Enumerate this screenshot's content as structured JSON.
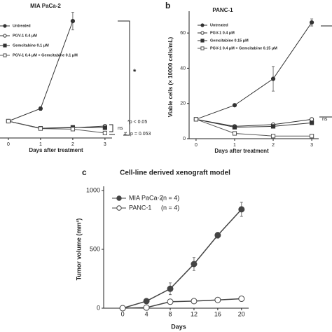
{
  "chart_data": [
    {
      "type": "line",
      "title": "MIA PaCa-2",
      "x_label": "Days after treatment",
      "x": [
        0,
        1,
        2,
        3
      ],
      "xlim": [
        -0.26,
        3.22
      ],
      "xticks": [
        0,
        1,
        2,
        3
      ],
      "ylim": [
        0,
        70
      ],
      "series": [
        {
          "name": "Untreated",
          "color": "#333333",
          "marker": "circle",
          "filled": true,
          "values": [
            9.5,
            16.6,
            66,
            null
          ],
          "errors": [
            0.3,
            1,
            5,
            null
          ]
        },
        {
          "name": "PGV-1 0.4 μM",
          "color": "#333333",
          "marker": "circle",
          "filled": false,
          "values": [
            9.5,
            5.5,
            5.8,
            6.7
          ],
          "errors": [
            0.3,
            0.5,
            0.5,
            0.5
          ]
        },
        {
          "name": "Gemcitabine 0.1 μM",
          "color": "#333333",
          "marker": "square",
          "filled": true,
          "values": [
            9.5,
            5.5,
            6,
            5.8
          ],
          "errors": [
            0.3,
            0.5,
            0.5,
            0.5
          ]
        },
        {
          "name": "PGV-1 0.4 μM + Gemcitabine 0.1 μM",
          "color": "#555555",
          "marker": "square",
          "filled": false,
          "values": [
            9.5,
            5.3,
            5,
            2.8
          ],
          "errors": [
            0.3,
            0.5,
            0.5,
            0.4
          ]
        }
      ],
      "annotations": [
        "*",
        "ns",
        "*p < 0.05",
        "#",
        "p = 0.053"
      ]
    },
    {
      "type": "line",
      "panel": "b",
      "title": "PANC-1",
      "x_label": "Days after treatment",
      "y_label": "Viable cells (× 10000 cells/mL)",
      "x": [
        0,
        1,
        2,
        3
      ],
      "xlim": [
        -0.18,
        3.18
      ],
      "xticks": [
        0,
        1,
        2,
        3
      ],
      "ylim": [
        0,
        70
      ],
      "yticks": [
        0,
        20,
        40,
        60
      ],
      "series": [
        {
          "name": "Untreated",
          "color": "#333333",
          "marker": "circle",
          "filled": true,
          "values": [
            11,
            19,
            34,
            66
          ],
          "errors": [
            0.5,
            0.8,
            7,
            2
          ]
        },
        {
          "name": "PGV-1 0.4 μM",
          "color": "#333333",
          "marker": "circle",
          "filled": false,
          "values": [
            11,
            7,
            8,
            11
          ],
          "errors": [
            0.5,
            0.5,
            0.6,
            0.6
          ]
        },
        {
          "name": "Gemcitabine 0.15 μM",
          "color": "#333333",
          "marker": "square",
          "filled": true,
          "values": [
            11,
            6.5,
            7,
            9
          ],
          "errors": [
            0.5,
            0.5,
            0.5,
            0.5
          ]
        },
        {
          "name": "PGV-1 0.4 μM + Gemcitabine 0.15 μM",
          "color": "#555555",
          "marker": "square",
          "filled": false,
          "values": [
            11,
            3,
            1.5,
            1.5
          ],
          "errors": [
            0.5,
            0.4,
            0.3,
            0.3
          ]
        }
      ],
      "annotations": [
        "ns"
      ]
    },
    {
      "type": "line",
      "panel": "c",
      "title": "Cell-line derived xenograft model",
      "x_label": "Days",
      "y_label": "Tumor volume (mm³)",
      "x": [
        0,
        4,
        8,
        12,
        16,
        20
      ],
      "xlim": [
        -3.2,
        21.2
      ],
      "xticks": [
        0,
        4,
        8,
        12,
        16,
        20
      ],
      "ylim": [
        0,
        1000
      ],
      "yticks": [
        0,
        500,
        1000
      ],
      "series": [
        {
          "name": "MIA PaCa-2",
          "n_label": "(n = 4)",
          "color": "#444444",
          "marker": "circle",
          "filled": true,
          "values": [
            0,
            60,
            165,
            375,
            620,
            840
          ],
          "errors": [
            5,
            15,
            50,
            55,
            25,
            60
          ]
        },
        {
          "name": "PANC-1",
          "n_label": "(n = 4)",
          "color": "#444444",
          "marker": "circle",
          "filled": false,
          "values": [
            0,
            5,
            55,
            60,
            70,
            80
          ],
          "errors": [
            3,
            5,
            8,
            8,
            8,
            8
          ]
        }
      ]
    }
  ]
}
